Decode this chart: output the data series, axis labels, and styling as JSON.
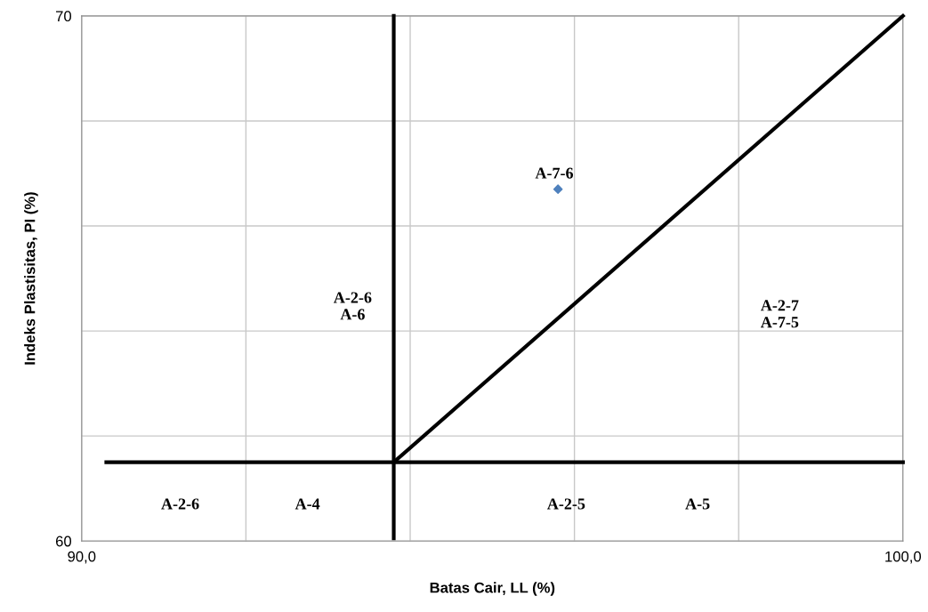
{
  "chart_data": {
    "type": "scatter",
    "xlabel": "Batas Cair, LL (%)",
    "ylabel": "Indeks Plastisitas, PI (%)",
    "xlim": [
      90,
      100
    ],
    "ylim": [
      60,
      70
    ],
    "xticks": [
      {
        "value": 90,
        "label": "90,0"
      },
      {
        "value": 92,
        "label": null
      },
      {
        "value": 94,
        "label": null
      },
      {
        "value": 96,
        "label": null
      },
      {
        "value": 98,
        "label": null
      },
      {
        "value": 100,
        "label": "100,0"
      }
    ],
    "yticks": [
      60,
      {
        "value": 62,
        "label": null
      },
      {
        "value": 64,
        "label": null
      },
      {
        "value": 66,
        "label": null
      },
      {
        "value": 68,
        "label": null
      },
      70
    ],
    "grid": true,
    "legend": false,
    "series": [
      {
        "type": "line",
        "color": "#000000",
        "x": [
          93.8,
          93.8
        ],
        "values": [
          60.05,
          70
        ],
        "marker": "none"
      },
      {
        "type": "line",
        "color": "#000000",
        "x": [
          90.3,
          100
        ],
        "values": [
          61.5,
          61.5
        ],
        "marker": "none"
      },
      {
        "type": "line",
        "color": "#000000",
        "x": [
          93.8,
          100
        ],
        "values": [
          61.5,
          70
        ],
        "marker": "none"
      },
      {
        "color": "#4f81bd",
        "x": [
          95.8
        ],
        "values": [
          66.7
        ],
        "marker": "diamond"
      }
    ],
    "annotations": [
      {
        "text": "A-7-6",
        "x": 95.8,
        "y": 66.7
      },
      "A-2-6\nA-6",
      "A-2-7\nA-7-5",
      "A-2-6",
      "A-4",
      "A-2-5",
      "A-5"
    ]
  }
}
